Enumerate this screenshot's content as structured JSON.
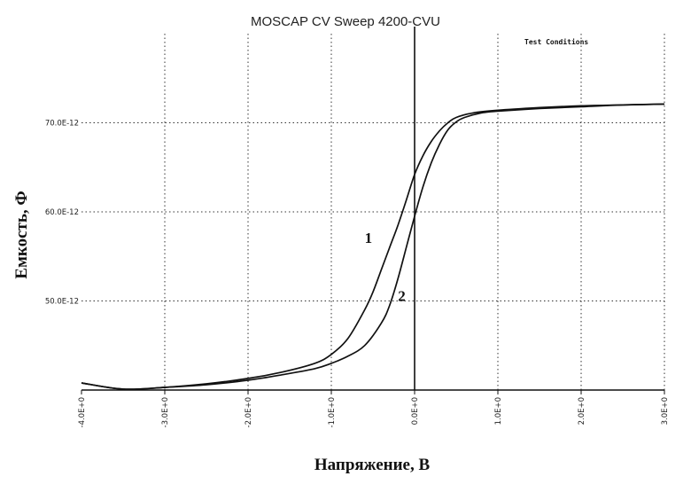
{
  "chart_data": {
    "type": "line",
    "title": "MOSCAP CV Sweep 4200-CVU",
    "legend_note": "Test Conditions",
    "xlabel": "Напряжение, В",
    "ylabel": "Емкость, Ф",
    "xlim": [
      -4.0,
      3.0
    ],
    "ylim": [
      40.0,
      80.0
    ],
    "y_unit_scale": "E-12",
    "grid": true,
    "x_ticks": [
      -4.0,
      -3.0,
      -2.0,
      -1.0,
      0.0,
      1.0,
      2.0,
      3.0
    ],
    "x_tick_labels": [
      "-4.0E+0",
      "-3.0E+0",
      "-2.0E+0",
      "-1.0E+0",
      "0.0E+0",
      "1.0E+0",
      "2.0E+0",
      "3.0E+0"
    ],
    "y_ticks": [
      50.0,
      60.0,
      70.0
    ],
    "y_tick_labels": [
      "50.0E-12",
      "60.0E-12",
      "70.0E-12"
    ],
    "series": [
      {
        "name": "1",
        "label_at": [
          -0.6,
          56.5
        ],
        "x": [
          -4.0,
          -3.5,
          -3.0,
          -2.5,
          -2.0,
          -1.6,
          -1.2,
          -1.0,
          -0.8,
          -0.6,
          -0.5,
          -0.4,
          -0.3,
          -0.2,
          -0.1,
          0.0,
          0.1,
          0.2,
          0.3,
          0.4,
          0.5,
          0.7,
          1.0,
          1.5,
          2.0,
          2.5,
          3.0
        ],
        "y": [
          40.8,
          40.1,
          40.3,
          40.7,
          41.3,
          42.0,
          43.0,
          44.0,
          45.8,
          49.0,
          51.0,
          53.5,
          56.0,
          58.5,
          61.3,
          64.2,
          66.3,
          67.9,
          69.1,
          70.0,
          70.6,
          71.1,
          71.4,
          71.7,
          71.9,
          72.0,
          72.1
        ]
      },
      {
        "name": "2",
        "label_at": [
          -0.2,
          50.0
        ],
        "x": [
          -4.0,
          -3.5,
          -3.0,
          -2.5,
          -2.0,
          -1.6,
          -1.2,
          -1.0,
          -0.8,
          -0.6,
          -0.4,
          -0.3,
          -0.2,
          -0.1,
          0.0,
          0.1,
          0.2,
          0.3,
          0.4,
          0.5,
          0.6,
          0.8,
          1.0,
          1.5,
          2.0,
          2.5,
          3.0
        ],
        "y": [
          40.8,
          40.1,
          40.3,
          40.6,
          41.1,
          41.7,
          42.4,
          43.0,
          43.8,
          45.0,
          47.5,
          49.5,
          52.5,
          56.0,
          59.5,
          62.8,
          65.5,
          67.6,
          69.2,
          70.1,
          70.6,
          71.1,
          71.3,
          71.6,
          71.8,
          72.0,
          72.1
        ]
      }
    ]
  }
}
